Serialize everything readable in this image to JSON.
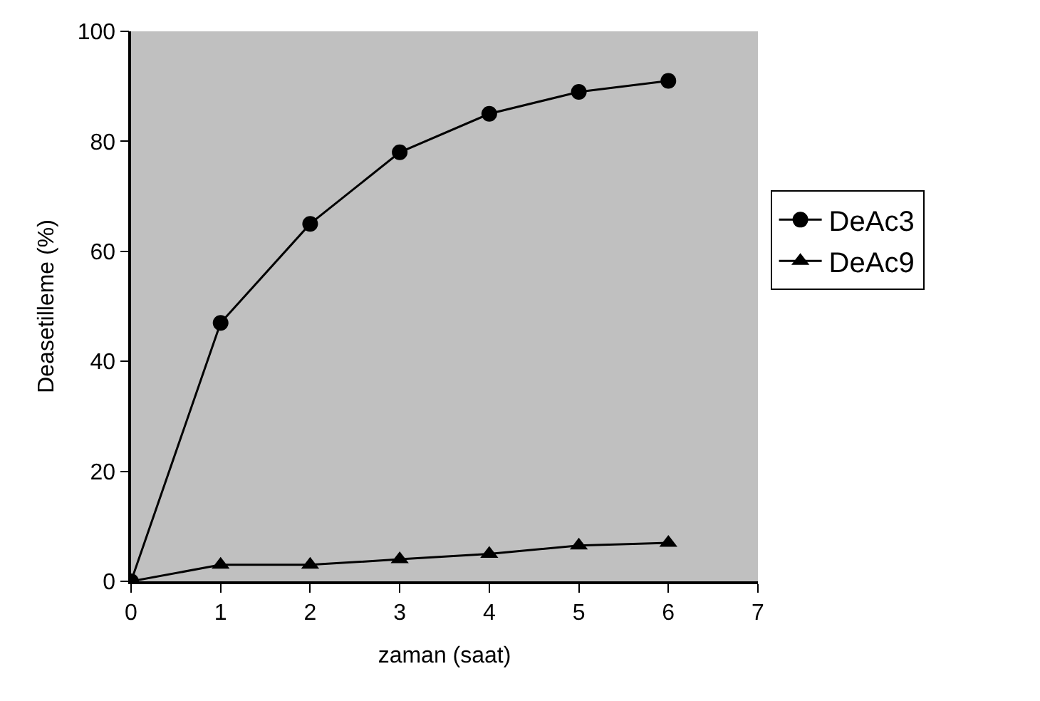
{
  "chart_data": {
    "type": "line",
    "xlabel": "zaman (saat)",
    "ylabel": "Deasetilleme (%)",
    "x": [
      0,
      1,
      2,
      3,
      4,
      5,
      6
    ],
    "series": [
      {
        "name": "DeAc3",
        "color": "#000000",
        "marker": "circle",
        "values": [
          0,
          47,
          65,
          78,
          85,
          89,
          91
        ]
      },
      {
        "name": "DeAc9",
        "color": "#000000",
        "marker": "triangle",
        "values": [
          0,
          3,
          3,
          4,
          5,
          6.5,
          7
        ]
      }
    ],
    "xlim": [
      0,
      7
    ],
    "xticks": [
      0,
      1,
      2,
      3,
      4,
      5,
      6,
      7
    ],
    "ylim": [
      0,
      100
    ],
    "yticks": [
      0,
      20,
      40,
      60,
      80,
      100
    ],
    "grid": false,
    "legend": "right",
    "line_style": "solid"
  }
}
